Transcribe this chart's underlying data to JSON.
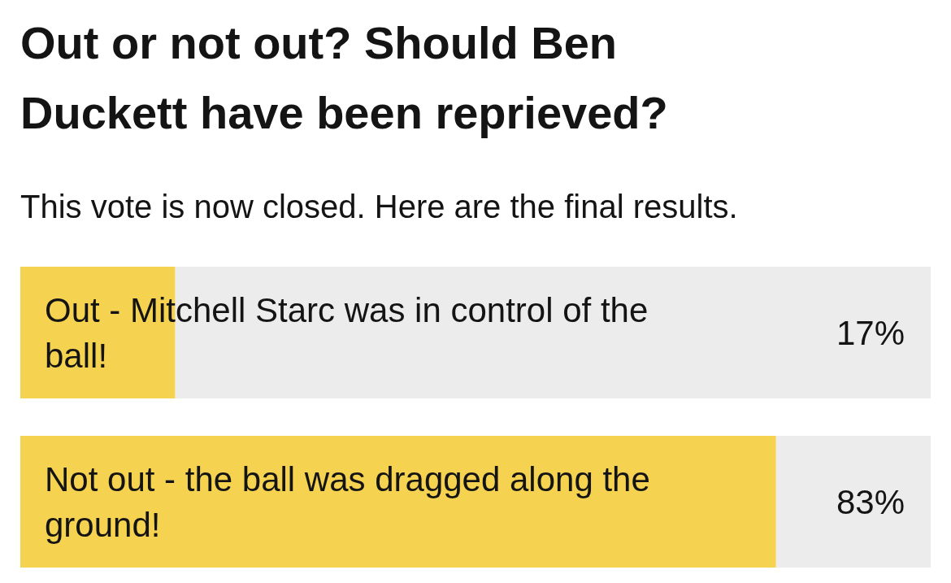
{
  "chart_data": {
    "type": "bar",
    "orientation": "horizontal",
    "title": "Out or not out? Should Ben Duckett have been reprieved?",
    "subtitle": "This vote is now closed. Here are the final results.",
    "categories": [
      "Out - Mitchell Starc was in control of the ball!",
      "Not out - the ball was dragged along the ground!"
    ],
    "values": [
      17,
      83
    ],
    "value_labels": [
      "17%",
      "83%"
    ],
    "color": "#f6d251",
    "xlim": [
      0,
      100
    ]
  }
}
